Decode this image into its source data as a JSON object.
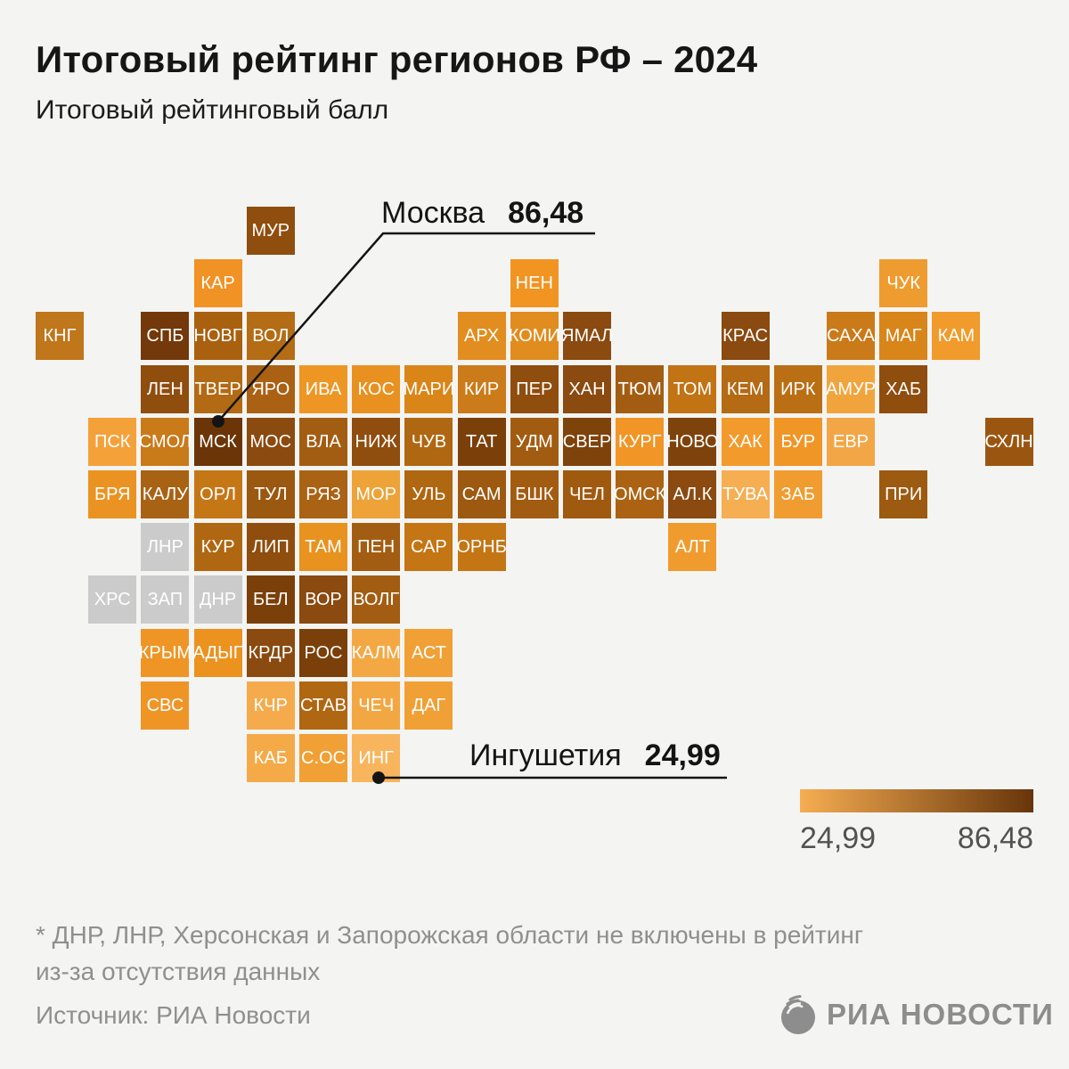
{
  "title": "Итоговый рейтинг регионов РФ – 2024",
  "subtitle": "Итоговый рейтинговый балл",
  "annotations": {
    "max": {
      "label": "Москва",
      "value": "86,48"
    },
    "min": {
      "label": "Ингушетия",
      "value": "24,99"
    }
  },
  "legend": {
    "min_label": "24,99",
    "max_label": "86,48",
    "color_min": "#f6ad52",
    "color_max": "#67350a"
  },
  "footnote": {
    "line1": "* ДНР, ЛНР, Херсонская и Запорожская области не включены в рейтинг",
    "line2": "из-за отсутствия данных"
  },
  "source": "Источник: РИА Новости",
  "logo_text": "РИА НОВОСТИ",
  "chart_data": {
    "type": "heatmap",
    "subtype": "tile-cartogram",
    "title": "Итоговый рейтинг регионов РФ – 2024",
    "value_label": "Итоговый рейтинговый балл",
    "scale": {
      "min": 24.99,
      "max": 86.48,
      "min_label": "24,99",
      "max_label": "86,48"
    },
    "labeled_points": [
      {
        "region": "Москва",
        "code": "МСК",
        "value": 86.48
      },
      {
        "region": "Ингушетия",
        "code": "ИНГ",
        "value": 24.99
      }
    ],
    "excluded_regions": [
      "ДНР",
      "ЛНР",
      "ХРС",
      "ЗАП"
    ],
    "grid": {
      "rows": 11,
      "cols": 19
    },
    "tiles": [
      {
        "code": "МУР",
        "row": 0,
        "col": 4,
        "color": "#8f4d0e"
      },
      {
        "code": "КАР",
        "row": 1,
        "col": 3,
        "color": "#f09224"
      },
      {
        "code": "НЕН",
        "row": 1,
        "col": 9,
        "color": "#f29421"
      },
      {
        "code": "ЧУК",
        "row": 1,
        "col": 16,
        "color": "#ee9c2f"
      },
      {
        "code": "КНГ",
        "row": 2,
        "col": 0,
        "color": "#c0761a"
      },
      {
        "code": "СПБ",
        "row": 2,
        "col": 2,
        "color": "#73390a"
      },
      {
        "code": "НОВГ",
        "row": 2,
        "col": 3,
        "color": "#a96110"
      },
      {
        "code": "ВОЛ",
        "row": 2,
        "col": 4,
        "color": "#b46c15"
      },
      {
        "code": "АРХ",
        "row": 2,
        "col": 8,
        "color": "#e28d1f"
      },
      {
        "code": "КОМИ",
        "row": 2,
        "col": 9,
        "color": "#e08c1e"
      },
      {
        "code": "ЯМАЛ",
        "row": 2,
        "col": 10,
        "color": "#8a4a10"
      },
      {
        "code": "КРАС",
        "row": 2,
        "col": 13,
        "color": "#8a4a10"
      },
      {
        "code": "САХА",
        "row": 2,
        "col": 15,
        "color": "#ca7a19"
      },
      {
        "code": "МАГ",
        "row": 2,
        "col": 16,
        "color": "#d88519"
      },
      {
        "code": "КАМ",
        "row": 2,
        "col": 17,
        "color": "#f09b2b"
      },
      {
        "code": "ЛЕН",
        "row": 3,
        "col": 2,
        "color": "#8f4d0e"
      },
      {
        "code": "ТВЕР",
        "row": 3,
        "col": 3,
        "color": "#b26a14"
      },
      {
        "code": "ЯРО",
        "row": 3,
        "col": 4,
        "color": "#aa6113"
      },
      {
        "code": "ИВА",
        "row": 3,
        "col": 5,
        "color": "#ee9624"
      },
      {
        "code": "КОС",
        "row": 3,
        "col": 6,
        "color": "#e89120"
      },
      {
        "code": "МАРИ",
        "row": 3,
        "col": 7,
        "color": "#d98518"
      },
      {
        "code": "КИР",
        "row": 3,
        "col": 8,
        "color": "#cb7b19"
      },
      {
        "code": "ПЕР",
        "row": 3,
        "col": 9,
        "color": "#8f4d0e"
      },
      {
        "code": "ХАН",
        "row": 3,
        "col": 10,
        "color": "#8a4a10"
      },
      {
        "code": "ТЮМ",
        "row": 3,
        "col": 11,
        "color": "#a35d12"
      },
      {
        "code": "ТОМ",
        "row": 3,
        "col": 12,
        "color": "#c27314"
      },
      {
        "code": "КЕМ",
        "row": 3,
        "col": 13,
        "color": "#b56a14"
      },
      {
        "code": "ИРК",
        "row": 3,
        "col": 14,
        "color": "#ba6f15"
      },
      {
        "code": "АМУР",
        "row": 3,
        "col": 15,
        "color": "#f2a43c"
      },
      {
        "code": "ХАБ",
        "row": 3,
        "col": 16,
        "color": "#8f4d0e"
      },
      {
        "code": "ПСК",
        "row": 4,
        "col": 1,
        "color": "#f5a13a"
      },
      {
        "code": "СМОЛ",
        "row": 4,
        "col": 2,
        "color": "#c97a19"
      },
      {
        "code": "МСК",
        "row": 4,
        "col": 3,
        "color": "#6b3508"
      },
      {
        "code": "МОС",
        "row": 4,
        "col": 4,
        "color": "#8a4a10"
      },
      {
        "code": "ВЛА",
        "row": 4,
        "col": 5,
        "color": "#a35d12"
      },
      {
        "code": "НИЖ",
        "row": 4,
        "col": 6,
        "color": "#8f4d0e"
      },
      {
        "code": "ЧУВ",
        "row": 4,
        "col": 7,
        "color": "#b06712"
      },
      {
        "code": "ТАТ",
        "row": 4,
        "col": 8,
        "color": "#7b400a"
      },
      {
        "code": "УДМ",
        "row": 4,
        "col": 9,
        "color": "#a25c11"
      },
      {
        "code": "СВЕР",
        "row": 4,
        "col": 10,
        "color": "#7e420b"
      },
      {
        "code": "КУРГ",
        "row": 4,
        "col": 11,
        "color": "#f09526"
      },
      {
        "code": "НОВО",
        "row": 4,
        "col": 12,
        "color": "#7e430c"
      },
      {
        "code": "ХАК",
        "row": 4,
        "col": 13,
        "color": "#f29a2c"
      },
      {
        "code": "БУР",
        "row": 4,
        "col": 14,
        "color": "#f09627"
      },
      {
        "code": "ЕВР",
        "row": 4,
        "col": 15,
        "color": "#f3a646"
      },
      {
        "code": "СХЛН",
        "row": 4,
        "col": 18,
        "color": "#9a5610"
      },
      {
        "code": "БРЯ",
        "row": 5,
        "col": 1,
        "color": "#ea9322"
      },
      {
        "code": "КАЛУ",
        "row": 5,
        "col": 2,
        "color": "#a86214"
      },
      {
        "code": "ОРЛ",
        "row": 5,
        "col": 3,
        "color": "#c57716"
      },
      {
        "code": "ТУЛ",
        "row": 5,
        "col": 4,
        "color": "#9a5810"
      },
      {
        "code": "РЯЗ",
        "row": 5,
        "col": 5,
        "color": "#aa6314"
      },
      {
        "code": "МОР",
        "row": 5,
        "col": 6,
        "color": "#eda338"
      },
      {
        "code": "УЛЬ",
        "row": 5,
        "col": 7,
        "color": "#b06712"
      },
      {
        "code": "САМ",
        "row": 5,
        "col": 8,
        "color": "#9d5910"
      },
      {
        "code": "БШК",
        "row": 5,
        "col": 9,
        "color": "#a25c11"
      },
      {
        "code": "ЧЕЛ",
        "row": 5,
        "col": 10,
        "color": "#a05a10"
      },
      {
        "code": "ОМСК",
        "row": 5,
        "col": 11,
        "color": "#ab6313"
      },
      {
        "code": "АЛ.К",
        "row": 5,
        "col": 12,
        "color": "#8a4a10"
      },
      {
        "code": "ТУВА",
        "row": 5,
        "col": 13,
        "color": "#f6ae52"
      },
      {
        "code": "ЗАБ",
        "row": 5,
        "col": 14,
        "color": "#f09c30"
      },
      {
        "code": "ПРИ",
        "row": 5,
        "col": 16,
        "color": "#9d5a11"
      },
      {
        "code": "ЛНР",
        "row": 6,
        "col": 2,
        "color": "#cbcbcb"
      },
      {
        "code": "КУР",
        "row": 6,
        "col": 3,
        "color": "#b06712"
      },
      {
        "code": "ЛИП",
        "row": 6,
        "col": 4,
        "color": "#8f4d0e"
      },
      {
        "code": "ТАМ",
        "row": 6,
        "col": 5,
        "color": "#e8921f"
      },
      {
        "code": "ПЕН",
        "row": 6,
        "col": 6,
        "color": "#a35d12"
      },
      {
        "code": "САР",
        "row": 6,
        "col": 7,
        "color": "#c47514"
      },
      {
        "code": "ОРНБ",
        "row": 6,
        "col": 8,
        "color": "#c47514"
      },
      {
        "code": "АЛТ",
        "row": 6,
        "col": 12,
        "color": "#f09b2e"
      },
      {
        "code": "ХРС",
        "row": 7,
        "col": 1,
        "color": "#cbcbcb"
      },
      {
        "code": "ЗАП",
        "row": 7,
        "col": 2,
        "color": "#cbcbcb"
      },
      {
        "code": "ДНР",
        "row": 7,
        "col": 3,
        "color": "#cbcbcb"
      },
      {
        "code": "БЕЛ",
        "row": 7,
        "col": 4,
        "color": "#7b400a"
      },
      {
        "code": "ВОР",
        "row": 7,
        "col": 5,
        "color": "#8a4a10"
      },
      {
        "code": "ВОЛГ",
        "row": 7,
        "col": 6,
        "color": "#a35d12"
      },
      {
        "code": "КРЫМ",
        "row": 8,
        "col": 2,
        "color": "#ef9526"
      },
      {
        "code": "АДЫГ",
        "row": 8,
        "col": 3,
        "color": "#ec921f"
      },
      {
        "code": "КРДР",
        "row": 8,
        "col": 4,
        "color": "#8a4a10"
      },
      {
        "code": "РОС",
        "row": 8,
        "col": 5,
        "color": "#7b400a"
      },
      {
        "code": "КАЛМ",
        "row": 8,
        "col": 6,
        "color": "#f4a844"
      },
      {
        "code": "АСТ",
        "row": 8,
        "col": 7,
        "color": "#f0a035"
      },
      {
        "code": "СВС",
        "row": 9,
        "col": 2,
        "color": "#ef9526"
      },
      {
        "code": "КЧР",
        "row": 9,
        "col": 4,
        "color": "#f5ab4c"
      },
      {
        "code": "СТАВ",
        "row": 9,
        "col": 5,
        "color": "#b06712"
      },
      {
        "code": "ЧЕЧ",
        "row": 9,
        "col": 6,
        "color": "#f3a742"
      },
      {
        "code": "ДАГ",
        "row": 9,
        "col": 7,
        "color": "#f0a035"
      },
      {
        "code": "КАБ",
        "row": 10,
        "col": 4,
        "color": "#f5aa48"
      },
      {
        "code": "С.ОС",
        "row": 10,
        "col": 5,
        "color": "#f0a035"
      },
      {
        "code": "ИНГ",
        "row": 10,
        "col": 6,
        "color": "#f8b55d"
      }
    ]
  }
}
